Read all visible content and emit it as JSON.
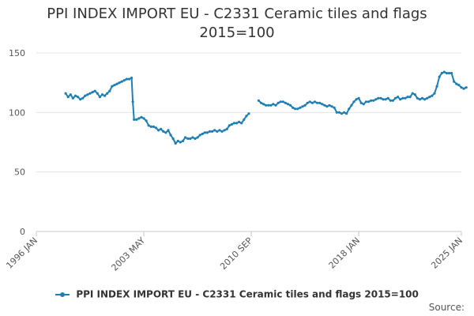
{
  "chart_data": {
    "type": "line",
    "title_line1": "PPI INDEX IMPORT EU - C2331 Ceramic tiles and flags",
    "title_line2": "2015=100",
    "xlabel": "",
    "ylabel": "",
    "ylim": [
      0,
      150
    ],
    "y_ticks": [
      0,
      50,
      100,
      150
    ],
    "x_range": [
      "1996-01",
      "2025-01"
    ],
    "x_ticks": [
      {
        "date": "1996-01",
        "label": "1996 JAN"
      },
      {
        "date": "2003-05",
        "label": "2003 MAY"
      },
      {
        "date": "2010-09",
        "label": "2010 SEP"
      },
      {
        "date": "2018-01",
        "label": "2018 JAN"
      },
      {
        "date": "2025-01",
        "label": "2025 JAN"
      }
    ],
    "grid": true,
    "legend_placement": "bottom",
    "series": [
      {
        "name": "PPI INDEX IMPORT EU - C2331 Ceramic tiles and flags 2015=100",
        "color": "#1f7fb4",
        "segments": [
          [
            [
              "1998-01",
              116
            ],
            [
              "1998-03",
              113
            ],
            [
              "1998-05",
              115
            ],
            [
              "1998-07",
              112
            ],
            [
              "1998-09",
              114
            ],
            [
              "1998-11",
              113
            ],
            [
              "1999-01",
              111
            ],
            [
              "1999-03",
              112
            ],
            [
              "1999-05",
              114
            ],
            [
              "1999-07",
              115
            ],
            [
              "1999-09",
              116
            ],
            [
              "1999-11",
              117
            ],
            [
              "2000-01",
              118
            ],
            [
              "2000-03",
              116
            ],
            [
              "2000-05",
              113
            ],
            [
              "2000-07",
              115
            ],
            [
              "2000-09",
              114
            ],
            [
              "2000-11",
              116
            ],
            [
              "2001-01",
              118
            ],
            [
              "2001-03",
              122
            ],
            [
              "2001-05",
              123
            ],
            [
              "2001-07",
              124
            ],
            [
              "2001-09",
              125
            ],
            [
              "2001-11",
              126
            ],
            [
              "2002-01",
              127
            ],
            [
              "2002-03",
              128
            ],
            [
              "2002-05",
              128
            ],
            [
              "2002-07",
              129
            ],
            [
              "2002-08",
              109
            ],
            [
              "2002-09",
              94
            ],
            [
              "2002-11",
              94
            ],
            [
              "2003-01",
              95
            ],
            [
              "2003-03",
              96
            ],
            [
              "2003-05",
              95
            ],
            [
              "2003-07",
              93
            ],
            [
              "2003-09",
              89
            ],
            [
              "2003-11",
              88
            ],
            [
              "2004-01",
              88
            ],
            [
              "2004-03",
              87
            ],
            [
              "2004-05",
              85
            ],
            [
              "2004-07",
              86
            ],
            [
              "2004-09",
              84
            ],
            [
              "2004-11",
              83
            ],
            [
              "2005-01",
              85
            ],
            [
              "2005-03",
              81
            ],
            [
              "2005-05",
              78
            ],
            [
              "2005-07",
              74
            ],
            [
              "2005-09",
              76
            ],
            [
              "2005-11",
              75
            ],
            [
              "2006-01",
              76
            ],
            [
              "2006-03",
              79
            ],
            [
              "2006-05",
              78
            ],
            [
              "2006-07",
              78
            ],
            [
              "2006-09",
              79
            ],
            [
              "2006-11",
              78
            ],
            [
              "2007-01",
              79
            ],
            [
              "2007-03",
              81
            ],
            [
              "2007-05",
              82
            ],
            [
              "2007-07",
              83
            ],
            [
              "2007-09",
              83
            ],
            [
              "2007-11",
              84
            ],
            [
              "2008-01",
              84
            ],
            [
              "2008-03",
              85
            ],
            [
              "2008-05",
              84
            ],
            [
              "2008-07",
              85
            ],
            [
              "2008-09",
              84
            ],
            [
              "2008-11",
              85
            ],
            [
              "2009-01",
              86
            ],
            [
              "2009-03",
              89
            ],
            [
              "2009-05",
              90
            ],
            [
              "2009-07",
              91
            ],
            [
              "2009-09",
              91
            ],
            [
              "2009-11",
              92
            ],
            [
              "2010-01",
              91
            ],
            [
              "2010-03",
              94
            ],
            [
              "2010-05",
              97
            ],
            [
              "2010-07",
              99
            ]
          ],
          [
            [
              "2011-03",
              110
            ],
            [
              "2011-05",
              108
            ],
            [
              "2011-07",
              107
            ],
            [
              "2011-09",
              106
            ],
            [
              "2011-11",
              106
            ],
            [
              "2012-01",
              106
            ],
            [
              "2012-03",
              107
            ],
            [
              "2012-05",
              106
            ],
            [
              "2012-07",
              108
            ],
            [
              "2012-09",
              109
            ],
            [
              "2012-11",
              109
            ],
            [
              "2013-01",
              108
            ],
            [
              "2013-03",
              107
            ],
            [
              "2013-05",
              106
            ],
            [
              "2013-07",
              104
            ],
            [
              "2013-09",
              103
            ],
            [
              "2013-11",
              103
            ],
            [
              "2014-01",
              104
            ],
            [
              "2014-03",
              105
            ],
            [
              "2014-05",
              106
            ],
            [
              "2014-07",
              108
            ],
            [
              "2014-09",
              109
            ],
            [
              "2014-11",
              108
            ],
            [
              "2015-01",
              109
            ],
            [
              "2015-03",
              108
            ],
            [
              "2015-05",
              108
            ],
            [
              "2015-07",
              107
            ],
            [
              "2015-09",
              106
            ],
            [
              "2015-11",
              105
            ],
            [
              "2016-01",
              106
            ],
            [
              "2016-03",
              105
            ],
            [
              "2016-05",
              104
            ],
            [
              "2016-07",
              100
            ],
            [
              "2016-09",
              100
            ],
            [
              "2016-11",
              99
            ],
            [
              "2017-01",
              100
            ],
            [
              "2017-03",
              99
            ],
            [
              "2017-05",
              103
            ],
            [
              "2017-07",
              106
            ],
            [
              "2017-09",
              109
            ],
            [
              "2017-11",
              111
            ],
            [
              "2018-01",
              112
            ],
            [
              "2018-03",
              108
            ],
            [
              "2018-05",
              107
            ],
            [
              "2018-07",
              109
            ],
            [
              "2018-09",
              109
            ],
            [
              "2018-11",
              110
            ],
            [
              "2019-01",
              110
            ],
            [
              "2019-03",
              111
            ],
            [
              "2019-05",
              112
            ],
            [
              "2019-07",
              112
            ],
            [
              "2019-09",
              111
            ],
            [
              "2019-11",
              111
            ],
            [
              "2020-01",
              112
            ],
            [
              "2020-03",
              110
            ],
            [
              "2020-05",
              110
            ],
            [
              "2020-07",
              112
            ],
            [
              "2020-09",
              113
            ],
            [
              "2020-11",
              111
            ],
            [
              "2021-01",
              112
            ],
            [
              "2021-03",
              112
            ],
            [
              "2021-05",
              113
            ],
            [
              "2021-07",
              113
            ],
            [
              "2021-09",
              116
            ],
            [
              "2021-11",
              115
            ],
            [
              "2022-01",
              112
            ],
            [
              "2022-03",
              111
            ],
            [
              "2022-05",
              112
            ],
            [
              "2022-07",
              111
            ],
            [
              "2022-09",
              112
            ],
            [
              "2022-11",
              113
            ],
            [
              "2023-01",
              114
            ],
            [
              "2023-03",
              116
            ],
            [
              "2023-05",
              122
            ],
            [
              "2023-07",
              130
            ],
            [
              "2023-09",
              133
            ],
            [
              "2023-11",
              134
            ],
            [
              "2024-01",
              133
            ],
            [
              "2024-03",
              133
            ],
            [
              "2024-05",
              133
            ],
            [
              "2024-07",
              126
            ],
            [
              "2024-09",
              124
            ],
            [
              "2024-11",
              123
            ],
            [
              "2025-01",
              121
            ],
            [
              "2025-03",
              120
            ],
            [
              "2025-05",
              121
            ]
          ]
        ]
      }
    ]
  },
  "legend": {
    "label": "PPI INDEX IMPORT EU - C2331 Ceramic tiles and flags 2015=100"
  },
  "source": {
    "label": "Source:"
  }
}
